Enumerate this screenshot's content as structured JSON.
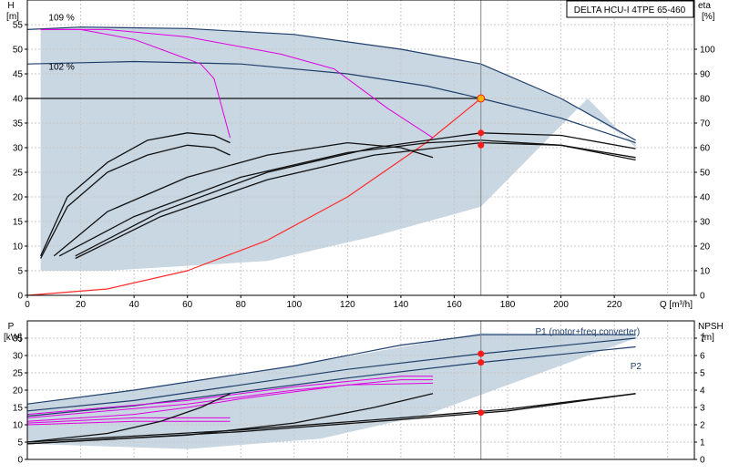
{
  "colors": {
    "envelope": "#c9d7e3",
    "envelope_edge": "#1f3f6a",
    "head_curve": "#1f3f6a",
    "pump_curve": "#111111",
    "power_curve": "#e000e0",
    "system_curve": "#ff2a2a",
    "op_point_fill": "#f2b705",
    "marker_red": "#ff1a1a",
    "label_blue": "#1f3f6a"
  },
  "chart_data": [
    {
      "name": "head-chart",
      "type": "line",
      "title": "DELTA HCU-I 4TPE 65-460",
      "ylabel_left": "H",
      "ylabel_left_unit": "[m]",
      "ylabel_right": "eta",
      "ylabel_right_unit": "[%]",
      "xlabel": "Q [m³/h]",
      "xlim": [
        0,
        250
      ],
      "ylim": [
        0,
        60
      ],
      "y2lim": [
        0,
        120
      ],
      "xticks": [
        0,
        20,
        40,
        60,
        80,
        100,
        120,
        140,
        160,
        180,
        200,
        220
      ],
      "yticks": [
        0,
        5,
        10,
        15,
        20,
        25,
        30,
        35,
        40,
        45,
        50,
        55
      ],
      "y2ticks": [
        0,
        10,
        20,
        30,
        40,
        50,
        60,
        70,
        80,
        90,
        100
      ],
      "grid": true,
      "speed_labels": [
        {
          "text": "109 %",
          "x": 8,
          "y": 55.8
        },
        {
          "text": "102 %",
          "x": 8,
          "y": 45.8
        }
      ],
      "envelope": [
        [
          5,
          5
        ],
        [
          5,
          54
        ],
        [
          20,
          54.5
        ],
        [
          60,
          54.2
        ],
        [
          100,
          53
        ],
        [
          140,
          50
        ],
        [
          170,
          47
        ],
        [
          200,
          40
        ],
        [
          228,
          31
        ],
        [
          228,
          30
        ],
        [
          210,
          40
        ],
        [
          170,
          18
        ],
        [
          130,
          12
        ],
        [
          90,
          7
        ],
        [
          30,
          5
        ]
      ],
      "series": [
        {
          "name": "109 %",
          "color_key": "envelope_edge",
          "points": [
            [
              0,
              54
            ],
            [
              20,
              54.5
            ],
            [
              60,
              54.2
            ],
            [
              100,
              53
            ],
            [
              140,
              50
            ],
            [
              170,
              47
            ],
            [
              200,
              40
            ],
            [
              228,
              31.5
            ]
          ]
        },
        {
          "name": "102 %",
          "color_key": "head_curve",
          "points": [
            [
              0,
              47
            ],
            [
              40,
              47.5
            ],
            [
              80,
              47
            ],
            [
              120,
              45
            ],
            [
              150,
              42.5
            ],
            [
              170,
              40
            ],
            [
              200,
              36
            ],
            [
              228,
              31
            ]
          ]
        },
        {
          "name": "duty-line",
          "color_key": "pump_curve",
          "points": [
            [
              0,
              40
            ],
            [
              170,
              40
            ]
          ]
        },
        {
          "name": "system-curve",
          "color_key": "system_curve",
          "points": [
            [
              0,
              0
            ],
            [
              30,
              1.3
            ],
            [
              60,
              5
            ],
            [
              90,
              11.2
            ],
            [
              120,
              20
            ],
            [
              150,
              31.2
            ],
            [
              170,
              40
            ]
          ]
        },
        {
          "name": "P-109-fill",
          "color_key": "power_curve",
          "points": [
            [
              5,
              54
            ],
            [
              20,
              54
            ],
            [
              40,
              52
            ],
            [
              55,
              49
            ],
            [
              65,
              47
            ],
            [
              70,
              44
            ],
            [
              76,
              32
            ]
          ]
        },
        {
          "name": "P-102-fill",
          "color_key": "power_curve",
          "points": [
            [
              5,
              54
            ],
            [
              30,
              54
            ],
            [
              60,
              52.5
            ],
            [
              95,
              49
            ],
            [
              115,
              46
            ],
            [
              135,
              38
            ],
            [
              152,
              32
            ]
          ]
        },
        {
          "name": "eta-1",
          "color_key": "pump_curve",
          "points": [
            [
              5,
              8
            ],
            [
              15,
              20
            ],
            [
              30,
              27
            ],
            [
              45,
              31.5
            ],
            [
              60,
              33
            ],
            [
              70,
              32.5
            ],
            [
              76,
              31
            ]
          ]
        },
        {
          "name": "eta-2",
          "color_key": "pump_curve",
          "points": [
            [
              5,
              7.5
            ],
            [
              15,
              18
            ],
            [
              30,
              25
            ],
            [
              45,
              28.5
            ],
            [
              60,
              30.5
            ],
            [
              70,
              30
            ],
            [
              76,
              28.5
            ]
          ]
        },
        {
          "name": "eta-3",
          "color_key": "pump_curve",
          "points": [
            [
              10,
              8
            ],
            [
              30,
              17
            ],
            [
              60,
              24
            ],
            [
              90,
              28.5
            ],
            [
              120,
              31
            ],
            [
              140,
              30
            ],
            [
              152,
              28
            ]
          ]
        },
        {
          "name": "eta-4",
          "color_key": "pump_curve",
          "points": [
            [
              12,
              8
            ],
            [
              40,
              16
            ],
            [
              80,
              24
            ],
            [
              120,
              29
            ],
            [
              150,
              31
            ],
            [
              170,
              31.5
            ],
            [
              200,
              30.5
            ],
            [
              228,
              27.5
            ]
          ]
        },
        {
          "name": "eta-5",
          "color_key": "pump_curve",
          "points": [
            [
              18,
              8
            ],
            [
              50,
              17
            ],
            [
              90,
              25
            ],
            [
              130,
              30
            ],
            [
              170,
              33
            ],
            [
              200,
              32.5
            ],
            [
              228,
              29.8
            ]
          ]
        },
        {
          "name": "eta-6",
          "color_key": "pump_curve",
          "points": [
            [
              18,
              7.5
            ],
            [
              50,
              16
            ],
            [
              90,
              23.5
            ],
            [
              130,
              28.5
            ],
            [
              170,
              31
            ],
            [
              200,
              30.5
            ],
            [
              228,
              28
            ]
          ]
        }
      ],
      "operating_point": {
        "x": 170,
        "y": 40
      },
      "vertical_line_x": 170,
      "markers": [
        {
          "x": 170,
          "y": 33
        },
        {
          "x": 170,
          "y": 30.5
        }
      ]
    },
    {
      "name": "power-chart",
      "type": "line",
      "ylabel_left": "P",
      "ylabel_left_unit": "[kW]",
      "ylabel_right": "NPSH",
      "ylabel_right_unit": "[m]",
      "xlim": [
        0,
        250
      ],
      "ylim": [
        0,
        40
      ],
      "y2lim": [
        0,
        8
      ],
      "yticks": [
        0,
        5,
        10,
        15,
        20,
        25,
        30,
        35
      ],
      "y2ticks": [
        0,
        1,
        2,
        3,
        4,
        5,
        6,
        7
      ],
      "grid": true,
      "labels": [
        {
          "text": "P1 (motor+freq.converter)",
          "x": 210,
          "y": 36
        },
        {
          "text": "P2",
          "x": 226,
          "y": 26
        }
      ],
      "envelope": [
        [
          0,
          16
        ],
        [
          40,
          20
        ],
        [
          100,
          27
        ],
        [
          170,
          36.5
        ],
        [
          228,
          36
        ],
        [
          228,
          35
        ],
        [
          150,
          13
        ],
        [
          110,
          6
        ],
        [
          60,
          3
        ],
        [
          20,
          4
        ],
        [
          0,
          4.5
        ]
      ],
      "series": [
        {
          "name": "P1-top",
          "color_key": "envelope_edge",
          "points": [
            [
              0,
              16
            ],
            [
              40,
              20
            ],
            [
              100,
              27
            ],
            [
              140,
              33
            ],
            [
              170,
              36
            ],
            [
              228,
              36
            ]
          ]
        },
        {
          "name": "P1",
          "color_key": "head_curve",
          "points": [
            [
              0,
              14
            ],
            [
              40,
              17
            ],
            [
              80,
              21.5
            ],
            [
              120,
              26
            ],
            [
              170,
              30.5
            ],
            [
              228,
              35
            ]
          ]
        },
        {
          "name": "P2",
          "color_key": "head_curve",
          "points": [
            [
              0,
              12.5
            ],
            [
              40,
              15.5
            ],
            [
              80,
              19.5
            ],
            [
              120,
              23.5
            ],
            [
              170,
              28
            ],
            [
              228,
              32.5
            ]
          ]
        },
        {
          "name": "magenta-1",
          "color_key": "power_curve",
          "points": [
            [
              0,
              13
            ],
            [
              60,
              17
            ],
            [
              100,
              21
            ],
            [
              140,
              24
            ],
            [
              152,
              24
            ]
          ]
        },
        {
          "name": "magenta-2",
          "color_key": "power_curve",
          "points": [
            [
              0,
              12
            ],
            [
              60,
              16
            ],
            [
              100,
              20
            ],
            [
              140,
              23
            ],
            [
              152,
              23
            ]
          ]
        },
        {
          "name": "magenta-3",
          "color_key": "power_curve",
          "points": [
            [
              0,
              11
            ],
            [
              40,
              13
            ],
            [
              60,
              15
            ],
            [
              80,
              17.5
            ],
            [
              120,
              21.5
            ],
            [
              152,
              22
            ]
          ]
        },
        {
          "name": "magenta-4",
          "color_key": "power_curve",
          "points": [
            [
              0,
              10.5
            ],
            [
              40,
              12
            ],
            [
              70,
              12
            ],
            [
              76,
              12
            ]
          ]
        },
        {
          "name": "magenta-5",
          "color_key": "power_curve",
          "points": [
            [
              0,
              10
            ],
            [
              40,
              11
            ],
            [
              70,
              11
            ],
            [
              76,
              11
            ]
          ]
        },
        {
          "name": "npsh-steep",
          "color_key": "pump_curve",
          "points": [
            [
              0,
              5
            ],
            [
              30,
              7.5
            ],
            [
              50,
              11
            ],
            [
              65,
              15
            ],
            [
              76,
              19
            ]
          ]
        },
        {
          "name": "npsh-mid",
          "color_key": "pump_curve",
          "points": [
            [
              0,
              4.5
            ],
            [
              60,
              7
            ],
            [
              100,
              10.5
            ],
            [
              130,
              15
            ],
            [
              152,
              19
            ]
          ]
        },
        {
          "name": "npsh-1",
          "color_key": "pump_curve",
          "points": [
            [
              0,
              4.5
            ],
            [
              80,
              8
            ],
            [
              140,
              11.5
            ],
            [
              180,
              14
            ],
            [
              228,
              19
            ]
          ]
        },
        {
          "name": "npsh-2",
          "color_key": "pump_curve",
          "points": [
            [
              0,
              5
            ],
            [
              80,
              8.5
            ],
            [
              140,
              12
            ],
            [
              180,
              14.5
            ],
            [
              228,
              19
            ]
          ]
        }
      ],
      "vertical_line_x": 170,
      "markers": [
        {
          "x": 170,
          "y": 30.5
        },
        {
          "x": 170,
          "y": 28
        },
        {
          "x": 170,
          "y": 13.5
        }
      ]
    }
  ]
}
